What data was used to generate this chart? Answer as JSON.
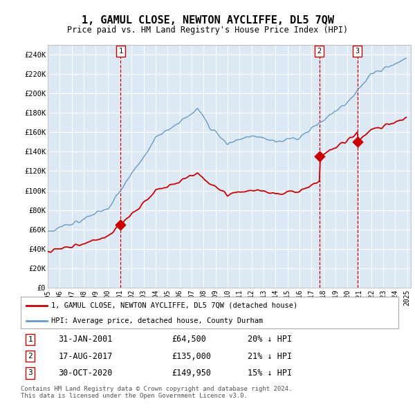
{
  "title": "1, GAMUL CLOSE, NEWTON AYCLIFFE, DL5 7QW",
  "subtitle": "Price paid vs. HM Land Registry's House Price Index (HPI)",
  "ylabel_ticks": [
    "£0",
    "£20K",
    "£40K",
    "£60K",
    "£80K",
    "£100K",
    "£120K",
    "£140K",
    "£160K",
    "£180K",
    "£200K",
    "£220K",
    "£240K"
  ],
  "ylim": [
    0,
    250000
  ],
  "yticks": [
    0,
    20000,
    40000,
    60000,
    80000,
    100000,
    120000,
    140000,
    160000,
    180000,
    200000,
    220000,
    240000
  ],
  "legend_line1": "1, GAMUL CLOSE, NEWTON AYCLIFFE, DL5 7QW (detached house)",
  "legend_line2": "HPI: Average price, detached house, County Durham",
  "sale1_date": "31-JAN-2001",
  "sale1_price": 64500,
  "sale1_pct": "20% ↓ HPI",
  "sale2_date": "17-AUG-2017",
  "sale2_price": 135000,
  "sale2_pct": "21% ↓ HPI",
  "sale3_date": "30-OCT-2020",
  "sale3_price": 149950,
  "sale3_pct": "15% ↓ HPI",
  "footer": "Contains HM Land Registry data © Crown copyright and database right 2024.\nThis data is licensed under the Open Government Licence v3.0.",
  "red_color": "#cc0000",
  "blue_color": "#6699cc",
  "bg_color_chart": "#dce9f5",
  "grid_color": "#ffffff",
  "bg_color": "#ffffff"
}
